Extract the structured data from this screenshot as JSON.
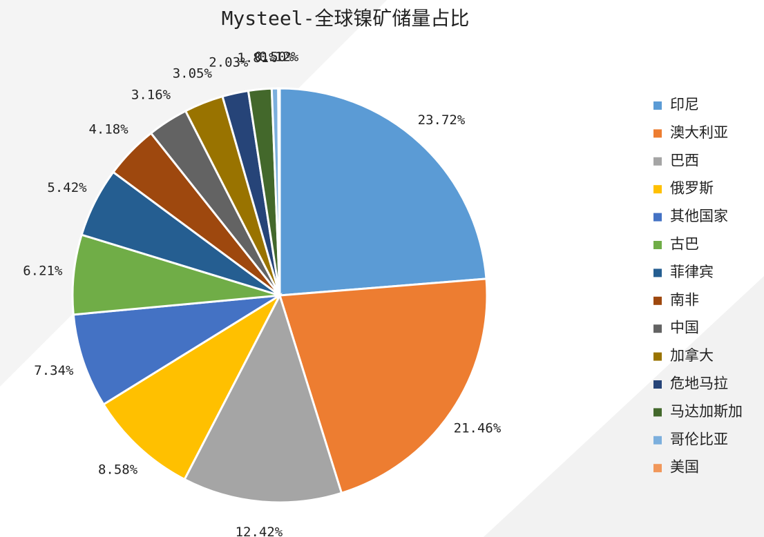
{
  "chart_data": {
    "type": "pie",
    "title": "Mysteel-全球镍矿储量占比",
    "categories": [
      "印尼",
      "澳大利亚",
      "巴西",
      "俄罗斯",
      "其他国家",
      "古巴",
      "菲律宾",
      "南非",
      "中国",
      "加拿大",
      "危地马拉",
      "马达加斯加",
      "哥伦比亚",
      "美国"
    ],
    "values": [
      23.72,
      21.46,
      12.42,
      8.58,
      7.34,
      6.21,
      5.42,
      4.18,
      3.16,
      3.05,
      2.03,
      1.81,
      0.5,
      0.12
    ],
    "value_labels": [
      "23.72%",
      "21.46%",
      "12.42%",
      "8.58%",
      "7.34%",
      "6.21%",
      "5.42%",
      "4.18%",
      "3.16%",
      "3.05%",
      "2.03%",
      "1.81%",
      "0.50%",
      "0.12%"
    ],
    "colors": [
      "#5b9bd5",
      "#ed7d31",
      "#a5a5a5",
      "#ffc000",
      "#4472c4",
      "#70ad47",
      "#255e91",
      "#9e480e",
      "#636363",
      "#997300",
      "#264478",
      "#43682b",
      "#7cafdd",
      "#f1975a"
    ],
    "legend": "right"
  }
}
